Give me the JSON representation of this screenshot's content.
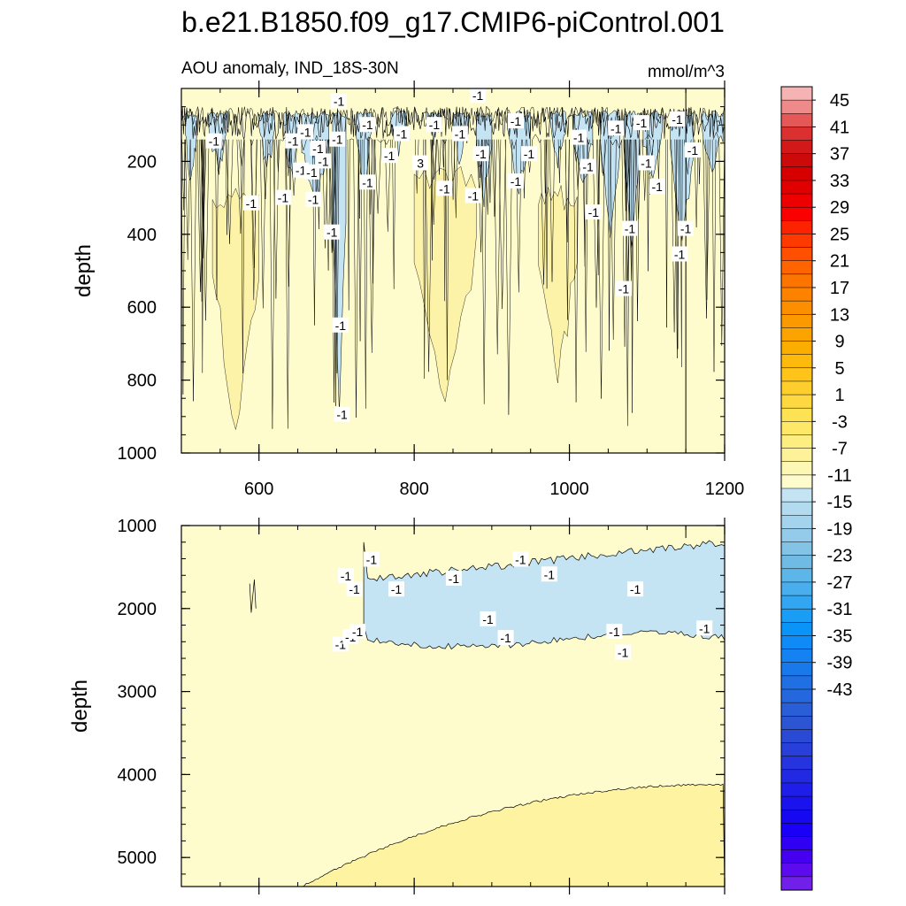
{
  "title": "b.e21.B1850.f09_g17.CMIP6-piControl.001",
  "chart_data": [
    {
      "type": "contour",
      "panel": "top",
      "subtitle_left": "AOU anomaly, IND_18S-30N",
      "subtitle_right": "mmol/m^3",
      "ylabel": "depth",
      "xlim": [
        500,
        1200
      ],
      "ylim": [
        1000,
        0
      ],
      "x_ticks": [
        600,
        800,
        1000,
        1200
      ],
      "x_tick_labels": [
        "600",
        "800",
        "1000",
        "1200"
      ],
      "y_ticks": [
        200,
        400,
        600,
        800,
        1000
      ],
      "y_tick_labels": [
        "200",
        "400",
        "600",
        "800",
        "1000"
      ],
      "contour_labels": [
        {
          "text": "-1",
          "x": 542,
          "y": 145
        },
        {
          "text": "-1",
          "x": 590,
          "y": 315
        },
        {
          "text": "-1",
          "x": 631,
          "y": 300
        },
        {
          "text": "-1",
          "x": 644,
          "y": 145
        },
        {
          "text": "-1",
          "x": 654,
          "y": 225
        },
        {
          "text": "-1",
          "x": 660,
          "y": 120
        },
        {
          "text": "-1",
          "x": 668,
          "y": 230
        },
        {
          "text": "-1",
          "x": 670,
          "y": 305
        },
        {
          "text": "-1",
          "x": 676,
          "y": 165
        },
        {
          "text": "-1",
          "x": 683,
          "y": 200
        },
        {
          "text": "-1",
          "x": 694,
          "y": 395
        },
        {
          "text": "-1",
          "x": 701,
          "y": 140
        },
        {
          "text": "-1",
          "x": 703,
          "y": 35
        },
        {
          "text": "-1",
          "x": 705,
          "y": 650
        },
        {
          "text": "-1",
          "x": 707,
          "y": 895
        },
        {
          "text": "-1",
          "x": 740,
          "y": 100
        },
        {
          "text": "-1",
          "x": 740,
          "y": 258
        },
        {
          "text": "-1",
          "x": 768,
          "y": 185
        },
        {
          "text": "-1",
          "x": 784,
          "y": 125
        },
        {
          "text": "3",
          "x": 808,
          "y": 205
        },
        {
          "text": "-1",
          "x": 826,
          "y": 100
        },
        {
          "text": "-1",
          "x": 839,
          "y": 275
        },
        {
          "text": "-1",
          "x": 859,
          "y": 125
        },
        {
          "text": "-1",
          "x": 876,
          "y": 295
        },
        {
          "text": "-1",
          "x": 882,
          "y": 20
        },
        {
          "text": "-1",
          "x": 886,
          "y": 180
        },
        {
          "text": "-1",
          "x": 931,
          "y": 90
        },
        {
          "text": "-1",
          "x": 931,
          "y": 255
        },
        {
          "text": "-1",
          "x": 948,
          "y": 180
        },
        {
          "text": "-1",
          "x": 1012,
          "y": 135
        },
        {
          "text": "-1",
          "x": 1024,
          "y": 215
        },
        {
          "text": "-1",
          "x": 1031,
          "y": 340
        },
        {
          "text": "-1",
          "x": 1060,
          "y": 110
        },
        {
          "text": "-1",
          "x": 1070,
          "y": 550
        },
        {
          "text": "-1",
          "x": 1078,
          "y": 385
        },
        {
          "text": "-1",
          "x": 1093,
          "y": 95
        },
        {
          "text": "-1",
          "x": 1099,
          "y": 205
        },
        {
          "text": "-1",
          "x": 1113,
          "y": 270
        },
        {
          "text": "-1",
          "x": 1139,
          "y": 85
        },
        {
          "text": "-1",
          "x": 1142,
          "y": 455
        },
        {
          "text": "-1",
          "x": 1150,
          "y": 385
        },
        {
          "text": "-1",
          "x": 1159,
          "y": 170
        }
      ]
    },
    {
      "type": "contour",
      "panel": "bottom",
      "ylabel": "depth",
      "xlim": [
        500,
        1200
      ],
      "ylim": [
        5350,
        1000
      ],
      "y_ticks": [
        1000,
        2000,
        3000,
        4000,
        5000
      ],
      "y_tick_labels": [
        "1000",
        "2000",
        "3000",
        "4000",
        "5000"
      ],
      "contour_labels": [
        {
          "text": "-1",
          "x": 723,
          "y": 1770
        },
        {
          "text": "-1",
          "x": 705,
          "y": 2435
        },
        {
          "text": "-1",
          "x": 718,
          "y": 2345
        },
        {
          "text": "-1",
          "x": 727,
          "y": 2280
        },
        {
          "text": "-1",
          "x": 712,
          "y": 1610
        },
        {
          "text": "-1",
          "x": 745,
          "y": 1410
        },
        {
          "text": "-1",
          "x": 777,
          "y": 1770
        },
        {
          "text": "-1",
          "x": 851,
          "y": 1640
        },
        {
          "text": "-1",
          "x": 895,
          "y": 2130
        },
        {
          "text": "-1",
          "x": 918,
          "y": 2355
        },
        {
          "text": "-1",
          "x": 937,
          "y": 1410
        },
        {
          "text": "-1",
          "x": 974,
          "y": 1590
        },
        {
          "text": "-1",
          "x": 1058,
          "y": 2280
        },
        {
          "text": "-1",
          "x": 1069,
          "y": 2530
        },
        {
          "text": "-1",
          "x": 1085,
          "y": 1770
        },
        {
          "text": "-1",
          "x": 1174,
          "y": 2240
        }
      ]
    },
    {
      "type": "colorbar",
      "tick_labels": [
        "45",
        "41",
        "37",
        "33",
        "29",
        "25",
        "21",
        "17",
        "13",
        "9",
        "5",
        "1",
        "-3",
        "-7",
        "-11",
        "-15",
        "-19",
        "-23",
        "-27",
        "-31",
        "-35",
        "-39",
        "-43"
      ],
      "colors": [
        "#f6b3b3",
        "#ee8a8a",
        "#e45858",
        "#da3030",
        "#d21818",
        "#cc0a0a",
        "#d60000",
        "#e10000",
        "#ef0000",
        "#fb0000",
        "#fd2200",
        "#fe3a00",
        "#fe5000",
        "#fe6400",
        "#fe7400",
        "#fd8200",
        "#fb8f00",
        "#fa9a00",
        "#fba400",
        "#fcae00",
        "#feba0c",
        "#fec41a",
        "#fece2c",
        "#fdd840",
        "#fde254",
        "#fde868",
        "#fdee82",
        "#fdf29a",
        "#fdf7b4",
        "#fefbcc",
        "#c4e4f4",
        "#b3dbf0",
        "#a4d3ed",
        "#94cbea",
        "#83c3e6",
        "#6fbbe4",
        "#5db6e8",
        "#4aaeec",
        "#32a6f0",
        "#1a9df4",
        "#0b94f8",
        "#0e8bf6",
        "#1482f0",
        "#1a79ea",
        "#2070e4",
        "#2567dd",
        "#2a5ed6",
        "#2c55d3",
        "#2a4ad6",
        "#283fda",
        "#2534de",
        "#2229e3",
        "#1e1ee8",
        "#1a13ed",
        "#1609f2",
        "#1a00f6",
        "#3000f4",
        "#4600f0",
        "#5c0aee",
        "#7020e8"
      ]
    }
  ]
}
